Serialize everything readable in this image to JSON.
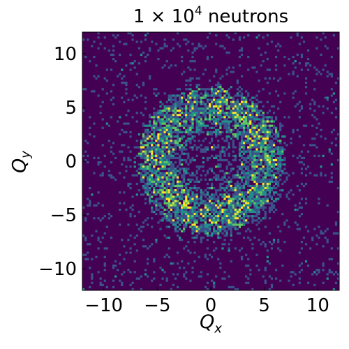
{
  "chart_data": {
    "type": "heatmap",
    "title": {
      "prefix": "1 × 10",
      "exponent": "4",
      "suffix": " neutrons"
    },
    "xlabel": {
      "symbol": "Q",
      "subscript": "x"
    },
    "ylabel": {
      "symbol": "Q",
      "subscript": "y"
    },
    "xlim": [
      -12,
      12
    ],
    "ylim": [
      -12,
      12
    ],
    "xticks": [
      -10,
      -5,
      0,
      5,
      10
    ],
    "yticks": [
      -10,
      -5,
      0,
      5,
      10
    ],
    "xtick_labels": [
      "−10",
      "−5",
      "0",
      "5",
      "10"
    ],
    "ytick_labels": [
      "−10",
      "−5",
      "0",
      "5",
      "10"
    ],
    "bins": 120,
    "colormap": [
      "#440154",
      "#3b528b",
      "#21918c",
      "#5ec962",
      "#fde725"
    ],
    "description_values": {
      "pattern": "ring",
      "ring_center": [
        0,
        0
      ],
      "ring_inner_radius": 3,
      "ring_outer_radius": 7,
      "ring_peak_radius": 5,
      "background_level": "low sparse counts"
    }
  }
}
